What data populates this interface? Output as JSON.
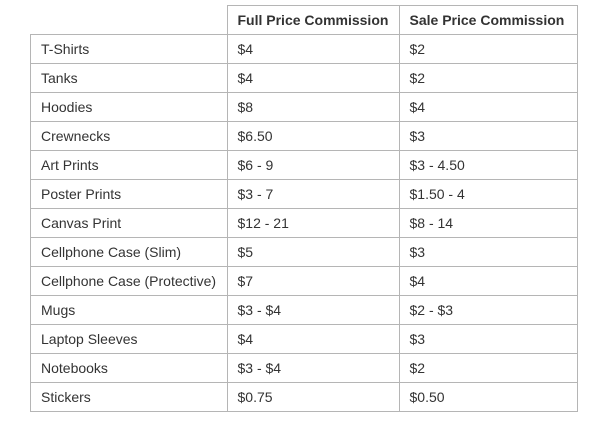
{
  "table": {
    "headers": [
      "",
      "Full Price Commission",
      "Sale Price Commission"
    ],
    "rows": [
      {
        "product": "T-Shirts",
        "full": "$4",
        "sale": "$2"
      },
      {
        "product": "Tanks",
        "full": "$4",
        "sale": "$2"
      },
      {
        "product": "Hoodies",
        "full": "$8",
        "sale": "$4"
      },
      {
        "product": "Crewnecks",
        "full": "$6.50",
        "sale": "$3"
      },
      {
        "product": "Art Prints",
        "full": "$6 - 9",
        "sale": "$3 - 4.50"
      },
      {
        "product": "Poster Prints",
        "full": "$3 - 7",
        "sale": "$1.50 - 4"
      },
      {
        "product": "Canvas Print",
        "full": "$12 - 21",
        "sale": "$8 - 14"
      },
      {
        "product": "Cellphone Case (Slim)",
        "full": "$5",
        "sale": "$3"
      },
      {
        "product": "Cellphone Case (Protective)",
        "full": "$7",
        "sale": "$4"
      },
      {
        "product": "Mugs",
        "full": "$3 - $4",
        "sale": "$2 - $3"
      },
      {
        "product": "Laptop Sleeves",
        "full": "$4",
        "sale": "$3"
      },
      {
        "product": "Notebooks",
        "full": "$3 - $4",
        "sale": "$2"
      },
      {
        "product": "Stickers",
        "full": "$0.75",
        "sale": "$0.50"
      }
    ]
  },
  "colors": {
    "border": "#b5b5b5",
    "text": "#333333",
    "background": "#ffffff"
  }
}
